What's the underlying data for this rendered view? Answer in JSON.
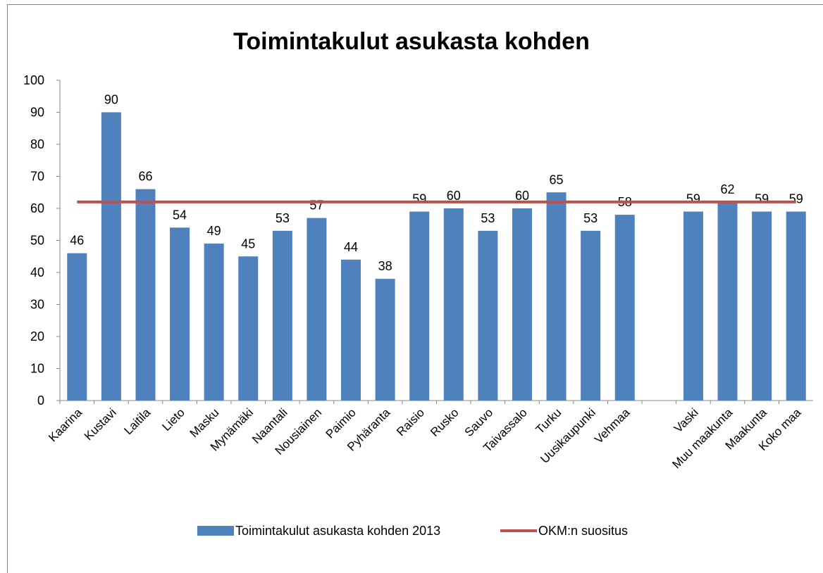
{
  "chart_data": {
    "type": "bar",
    "title": "Toimintakulut asukasta kohden",
    "categories": [
      "Kaarina",
      "Kustavi",
      "Laitila",
      "Lieto",
      "Masku",
      "Mynämäki",
      "Naantali",
      "Nousiainen",
      "Paimio",
      "Pyhäranta",
      "Raisio",
      "Rusko",
      "Sauvo",
      "Taivassalo",
      "Turku",
      "Uusikaupunki",
      "Vehmaa",
      null,
      "Vaski",
      "Muu maakunta",
      "Maakunta",
      "Koko maa"
    ],
    "series": [
      {
        "name": "Toimintakulut asukasta kohden 2013",
        "type": "bar",
        "color": "#4f81bd",
        "values": [
          46,
          90,
          66,
          54,
          49,
          45,
          53,
          57,
          44,
          38,
          59,
          60,
          53,
          60,
          65,
          53,
          58,
          null,
          59,
          62,
          59,
          59
        ]
      },
      {
        "name": "OKM:n suositus",
        "type": "line",
        "color": "#c0504d",
        "values": [
          62,
          62,
          62,
          62,
          62,
          62,
          62,
          62,
          62,
          62,
          62,
          62,
          62,
          62,
          62,
          62,
          62,
          62,
          62,
          62,
          62,
          62
        ]
      }
    ],
    "ylim": [
      0,
      100
    ],
    "yticks": [
      0,
      10,
      20,
      30,
      40,
      50,
      60,
      70,
      80,
      90,
      100
    ],
    "grid": false,
    "legend": "bottom"
  }
}
